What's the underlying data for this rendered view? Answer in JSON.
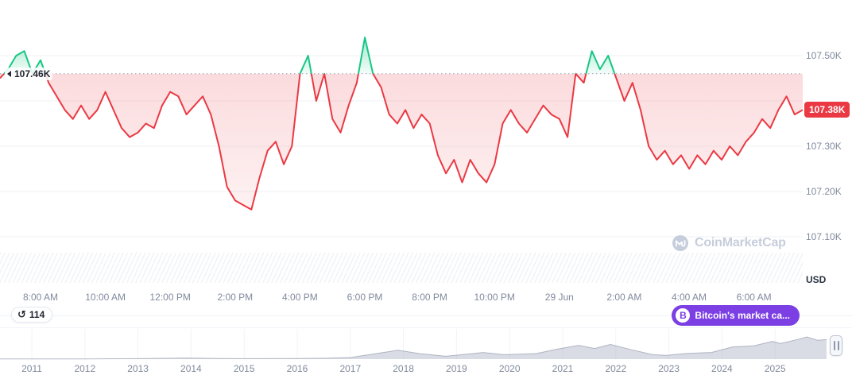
{
  "colors": {
    "up": "#16c784",
    "down": "#ea3943",
    "badge_bg": "#ea3943",
    "button_bg": "#7b3fe4",
    "grid": "#eff2f5",
    "axis_text": "#808a9d",
    "watermark": "#c6cedb"
  },
  "baseline": {
    "label": "107.46K",
    "value": 107.46
  },
  "y_axis": {
    "ticks": [
      {
        "label": "107.50K",
        "value": 107.5
      },
      {
        "label": "107.30K",
        "value": 107.3
      },
      {
        "label": "107.20K",
        "value": 107.2
      },
      {
        "label": "107.10K",
        "value": 107.1
      }
    ],
    "current_label": "107.38K",
    "unit": "USD"
  },
  "history_badge": {
    "icon_glyph": "↺",
    "count": "114"
  },
  "coin_button": {
    "icon_glyph": "B",
    "label": "Bitcoin's market ca..."
  },
  "watermark": {
    "text": "CoinMarketCap"
  },
  "range_selector": {
    "years": [
      "2011",
      "2012",
      "2013",
      "2014",
      "2015",
      "2016",
      "2017",
      "2018",
      "2019",
      "2020",
      "2021",
      "2022",
      "2023",
      "2024",
      "2025"
    ]
  },
  "chart_data": [
    {
      "type": "area",
      "title": "Bitcoin price (BTC/USD), 24h window",
      "ylabel": "USD",
      "ylim": [
        107.05,
        107.57
      ],
      "grid_values": [
        107.5,
        107.4,
        107.3,
        107.2,
        107.1
      ],
      "y_tick_labels": [
        "107.50K",
        "107.30K",
        "107.20K",
        "107.10K"
      ],
      "x_tick_labels": [
        "8:00 AM",
        "10:00 AM",
        "12:00 PM",
        "2:00 PM",
        "4:00 PM",
        "6:00 PM",
        "8:00 PM",
        "10:00 PM",
        "29 Jun",
        "2:00 AM",
        "4:00 AM",
        "6:00 AM"
      ],
      "baseline": 107.46,
      "current_price": 107.38,
      "sample_interval_minutes": 15,
      "x_start": "6:45 AM",
      "x_end": "7:30 AM next day (midnight tick = 29 Jun)",
      "prices": [
        107.45,
        107.47,
        107.5,
        107.51,
        107.46,
        107.49,
        107.44,
        107.41,
        107.38,
        107.36,
        107.39,
        107.36,
        107.38,
        107.42,
        107.38,
        107.34,
        107.32,
        107.33,
        107.35,
        107.34,
        107.39,
        107.42,
        107.41,
        107.37,
        107.39,
        107.41,
        107.37,
        107.3,
        107.21,
        107.18,
        107.17,
        107.16,
        107.23,
        107.29,
        107.31,
        107.26,
        107.3,
        107.46,
        107.5,
        107.4,
        107.46,
        107.36,
        107.33,
        107.39,
        107.44,
        107.54,
        107.46,
        107.43,
        107.37,
        107.35,
        107.38,
        107.34,
        107.37,
        107.35,
        107.28,
        107.24,
        107.27,
        107.22,
        107.27,
        107.24,
        107.22,
        107.26,
        107.35,
        107.38,
        107.35,
        107.33,
        107.36,
        107.39,
        107.37,
        107.36,
        107.32,
        107.46,
        107.44,
        107.51,
        107.47,
        107.5,
        107.45,
        107.4,
        107.44,
        107.38,
        107.3,
        107.27,
        107.29,
        107.26,
        107.28,
        107.25,
        107.28,
        107.26,
        107.29,
        107.27,
        107.3,
        107.28,
        107.31,
        107.33,
        107.36,
        107.34,
        107.38,
        107.41,
        107.37,
        107.38
      ]
    },
    {
      "type": "area",
      "role": "range-selector-sparkline",
      "x_tick_labels": [
        "2011",
        "2012",
        "2013",
        "2014",
        "2015",
        "2016",
        "2017",
        "2018",
        "2019",
        "2020",
        "2021",
        "2022",
        "2023",
        "2024",
        "2025"
      ],
      "points_year_value": [
        [
          2010.4,
          0.01
        ],
        [
          2011,
          0.01
        ],
        [
          2012,
          0.01
        ],
        [
          2013,
          0.02
        ],
        [
          2013.9,
          0.05
        ],
        [
          2014.5,
          0.03
        ],
        [
          2015,
          0.02
        ],
        [
          2016,
          0.03
        ],
        [
          2016.5,
          0.04
        ],
        [
          2017,
          0.07
        ],
        [
          2017.9,
          0.4
        ],
        [
          2018.3,
          0.25
        ],
        [
          2018.8,
          0.13
        ],
        [
          2019.5,
          0.3
        ],
        [
          2019.9,
          0.2
        ],
        [
          2020.5,
          0.25
        ],
        [
          2020.9,
          0.45
        ],
        [
          2021.3,
          0.62
        ],
        [
          2021.6,
          0.48
        ],
        [
          2021.9,
          0.66
        ],
        [
          2022.3,
          0.42
        ],
        [
          2022.7,
          0.2
        ],
        [
          2022.95,
          0.17
        ],
        [
          2023.3,
          0.25
        ],
        [
          2023.8,
          0.3
        ],
        [
          2024.2,
          0.55
        ],
        [
          2024.6,
          0.6
        ],
        [
          2024.95,
          0.8
        ],
        [
          2025.1,
          0.7
        ],
        [
          2025.45,
          0.9
        ],
        [
          2025.6,
          1.0
        ],
        [
          2025.8,
          0.85
        ],
        [
          2025.97,
          0.88
        ]
      ],
      "note": "unlabeled all-time sparkline; heights normalized 0-1"
    }
  ]
}
